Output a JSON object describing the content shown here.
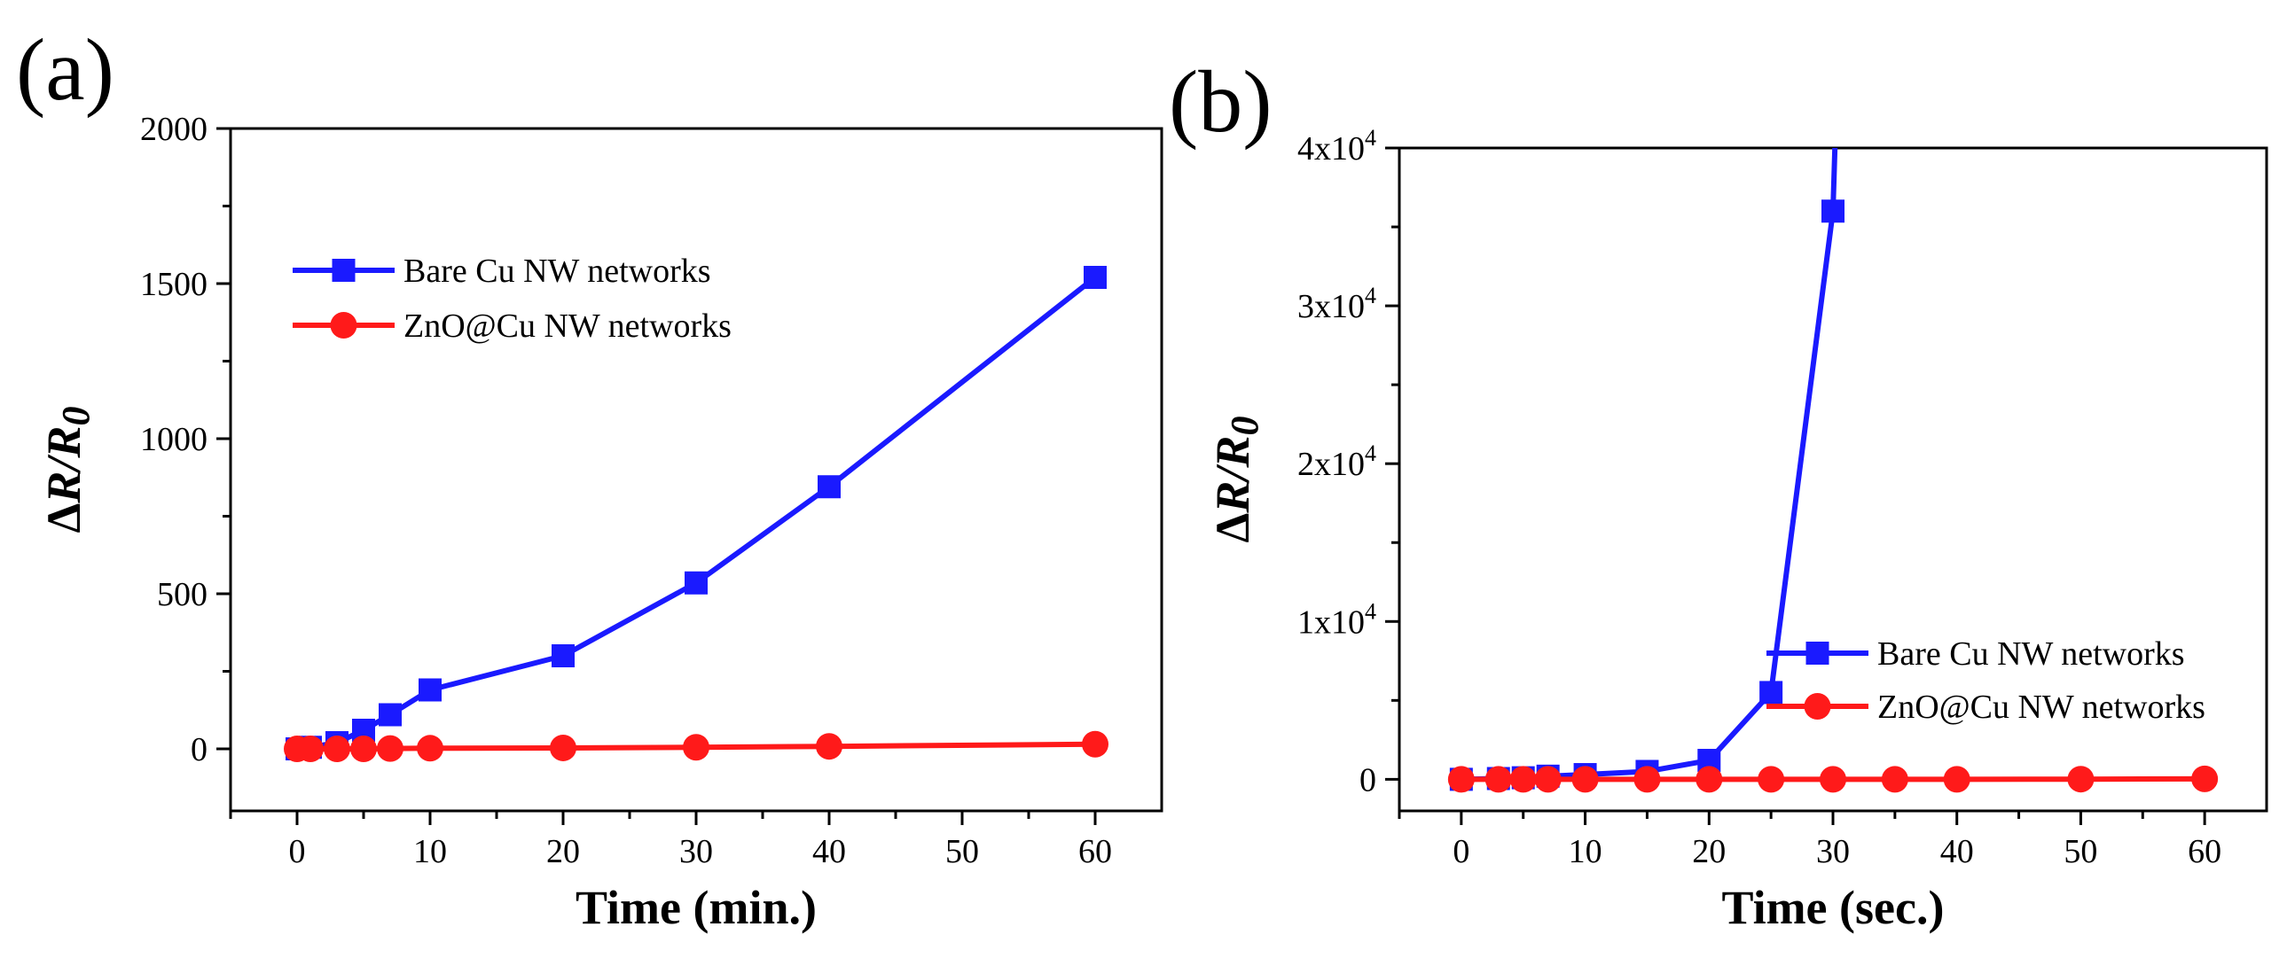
{
  "chart_data": [
    {
      "panel": "(a)",
      "type": "line",
      "xlabel": "Time (min.)",
      "ylabel": "ΔR/R0",
      "xlim": [
        -5,
        65
      ],
      "ylim": [
        -200,
        2000
      ],
      "xticks": [
        0,
        10,
        20,
        30,
        40,
        50,
        60
      ],
      "xtick_labels": [
        "0",
        "10",
        "20",
        "30",
        "40",
        "50",
        "60"
      ],
      "yticks": [
        0,
        500,
        1000,
        1500,
        2000
      ],
      "ytick_labels": [
        "0",
        "500",
        "1000",
        "1500",
        "2000"
      ],
      "legend_position": "top-left",
      "series": [
        {
          "name": "Bare Cu NW networks",
          "color": "#1a1aff",
          "marker": "square",
          "x": [
            0,
            1,
            3,
            5,
            7,
            10,
            20,
            30,
            40,
            60
          ],
          "y": [
            0,
            5,
            20,
            60,
            110,
            190,
            300,
            535,
            845,
            1520
          ]
        },
        {
          "name": "ZnO@Cu NW networks",
          "color": "#ff1a1a",
          "marker": "circle",
          "x": [
            0,
            1,
            3,
            5,
            7,
            10,
            20,
            30,
            40,
            60
          ],
          "y": [
            0,
            0,
            0,
            0,
            1,
            2,
            3,
            5,
            8,
            15
          ]
        }
      ]
    },
    {
      "panel": "(b)",
      "type": "line",
      "xlabel": "Time (sec.)",
      "ylabel": "ΔR/R0",
      "xlim": [
        -5,
        65
      ],
      "ylim": [
        -2000,
        40000
      ],
      "xticks": [
        0,
        10,
        20,
        30,
        40,
        50,
        60
      ],
      "xtick_labels": [
        "0",
        "10",
        "20",
        "30",
        "40",
        "50",
        "60"
      ],
      "yticks": [
        0,
        10000,
        20000,
        30000,
        40000
      ],
      "ytick_labels": [
        {
          "base": "0",
          "exp": ""
        },
        {
          "base": "1x10",
          "exp": "4"
        },
        {
          "base": "2x10",
          "exp": "4"
        },
        {
          "base": "3x10",
          "exp": "4"
        },
        {
          "base": "4x10",
          "exp": "4"
        }
      ],
      "legend_position": "bottom-right",
      "series": [
        {
          "name": "Bare Cu NW networks",
          "color": "#1a1aff",
          "marker": "square",
          "x": [
            0,
            3,
            5,
            7,
            10,
            15,
            20,
            25,
            30
          ],
          "y": [
            0,
            50,
            100,
            200,
            300,
            500,
            1200,
            5500,
            36000
          ],
          "continues_beyond": {
            "x": 30.2,
            "y": 40000
          }
        },
        {
          "name": "ZnO@Cu NW networks",
          "color": "#ff1a1a",
          "marker": "circle",
          "x": [
            0,
            3,
            5,
            7,
            10,
            15,
            20,
            25,
            30,
            35,
            40,
            50,
            60
          ],
          "y": [
            0,
            0,
            0,
            0,
            0,
            0,
            0,
            0,
            0,
            0,
            0,
            10,
            30
          ]
        }
      ]
    }
  ]
}
